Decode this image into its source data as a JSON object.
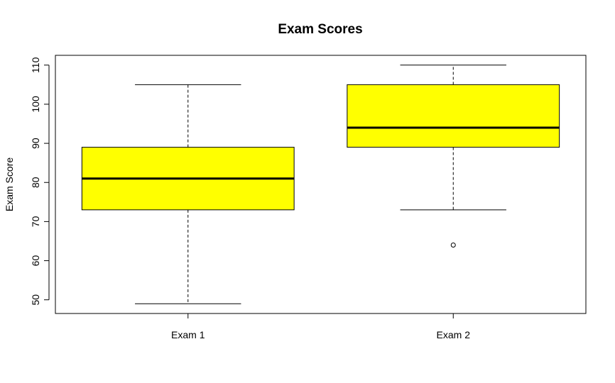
{
  "chart_data": {
    "type": "boxplot",
    "title": "Exam Scores",
    "xlabel": "",
    "ylabel": "Exam Score",
    "ylim": [
      46.5,
      112.5
    ],
    "yticks": [
      50,
      60,
      70,
      80,
      90,
      100,
      110
    ],
    "categories": [
      "Exam 1",
      "Exam 2"
    ],
    "box_fill": "#ffff00",
    "boxes": [
      {
        "category": "Exam 1",
        "whisker_low": 49,
        "q1": 73,
        "median": 81,
        "q3": 89,
        "whisker_high": 105,
        "outliers": []
      },
      {
        "category": "Exam 2",
        "whisker_low": 73,
        "q1": 89,
        "median": 94,
        "q3": 105,
        "whisker_high": 110,
        "outliers": [
          64
        ]
      }
    ],
    "grid": false,
    "legend": "none"
  }
}
